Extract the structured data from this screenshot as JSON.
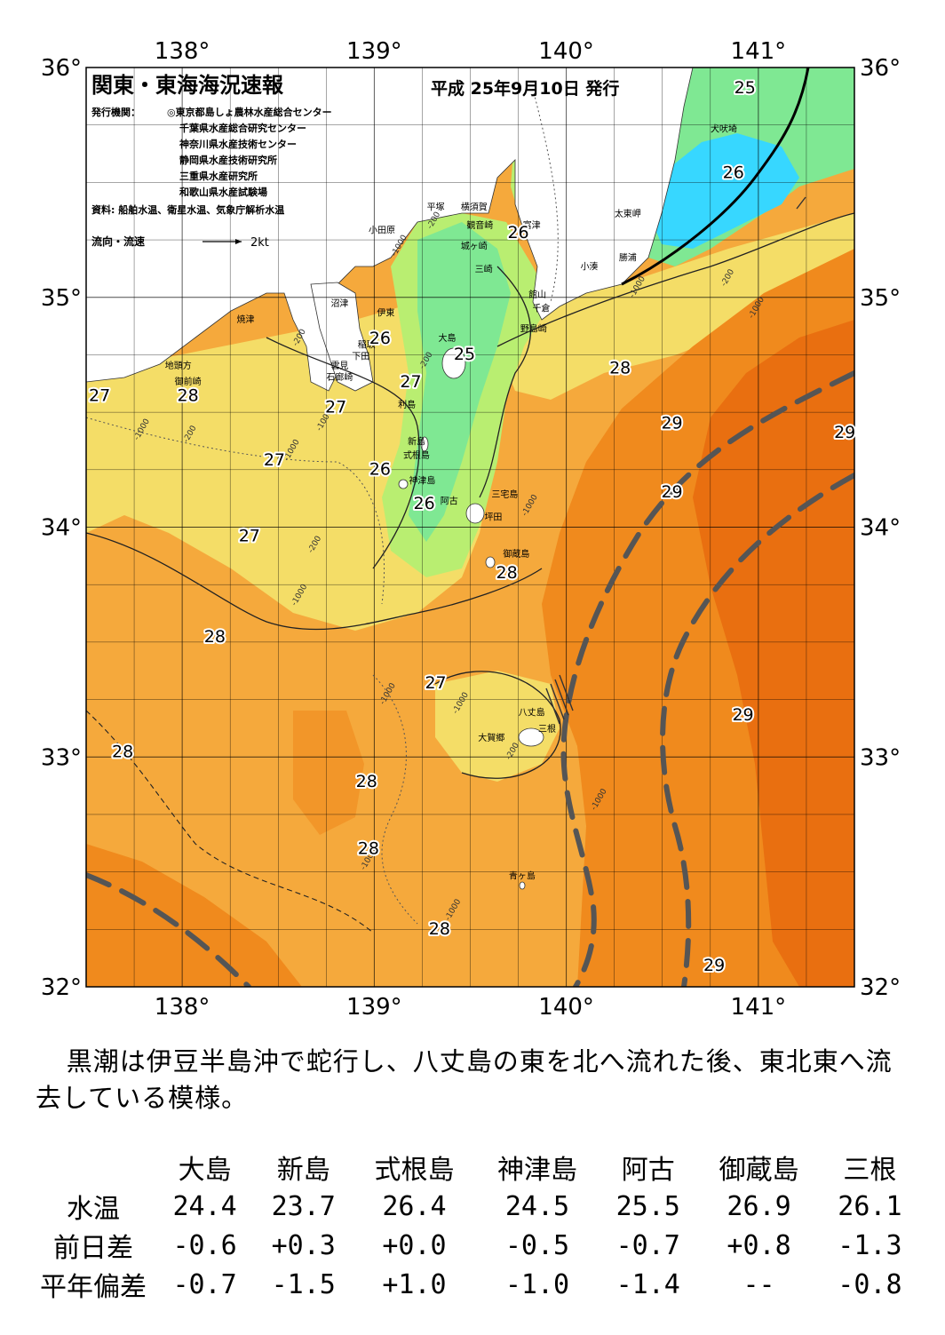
{
  "map": {
    "title": "関東・東海海況速報",
    "date": "平成 25年9月10日 発行",
    "issuer_label": "発行機関：",
    "issuers": [
      "◎東京都島しょ農林水産総合センター",
      "千葉県水産総合研究センター",
      "神奈川県水産技術センター",
      "静岡県水産技術研究所",
      "三重県水産研究所",
      "和歌山県水産試験場"
    ],
    "source": "資料: 船舶水温、衛星水温、気象庁解析水温",
    "flow_label": "流向・流速",
    "flow_scale": "2kt",
    "lon_labels": [
      "138°",
      "139°",
      "140°",
      "141°"
    ],
    "lat_labels": [
      "36°",
      "35°",
      "34°",
      "33°",
      "32°"
    ],
    "places": [
      {
        "name": "犬吠埼",
        "lon": 140.82,
        "lat": 35.72
      },
      {
        "name": "太東岬",
        "lon": 140.32,
        "lat": 35.35
      },
      {
        "name": "勝浦",
        "lon": 140.32,
        "lat": 35.16
      },
      {
        "name": "小湊",
        "lon": 140.12,
        "lat": 35.12
      },
      {
        "name": "富津",
        "lon": 139.82,
        "lat": 35.3
      },
      {
        "name": "館山",
        "lon": 139.85,
        "lat": 35.0
      },
      {
        "name": "千倉",
        "lon": 139.87,
        "lat": 34.94
      },
      {
        "name": "野島崎",
        "lon": 139.83,
        "lat": 34.85
      },
      {
        "name": "横須賀",
        "lon": 139.52,
        "lat": 35.38
      },
      {
        "name": "観音崎",
        "lon": 139.55,
        "lat": 35.3
      },
      {
        "name": "城ヶ崎",
        "lon": 139.52,
        "lat": 35.21
      },
      {
        "name": "三崎",
        "lon": 139.57,
        "lat": 35.11
      },
      {
        "name": "平塚",
        "lon": 139.32,
        "lat": 35.38
      },
      {
        "name": "小田原",
        "lon": 139.04,
        "lat": 35.28
      },
      {
        "name": "沼津",
        "lon": 138.82,
        "lat": 34.96
      },
      {
        "name": "伊東",
        "lon": 139.06,
        "lat": 34.92
      },
      {
        "name": "稲取",
        "lon": 138.96,
        "lat": 34.78
      },
      {
        "name": "下田",
        "lon": 138.93,
        "lat": 34.73
      },
      {
        "name": "雲見",
        "lon": 138.82,
        "lat": 34.69
      },
      {
        "name": "石廊崎",
        "lon": 138.82,
        "lat": 34.64
      },
      {
        "name": "焼津",
        "lon": 138.33,
        "lat": 34.89
      },
      {
        "name": "地頭方",
        "lon": 137.98,
        "lat": 34.69
      },
      {
        "name": "御前崎",
        "lon": 138.03,
        "lat": 34.62
      },
      {
        "name": "大島",
        "lon": 139.38,
        "lat": 34.81
      },
      {
        "name": "利島",
        "lon": 139.17,
        "lat": 34.52
      },
      {
        "name": "新島",
        "lon": 139.22,
        "lat": 34.36
      },
      {
        "name": "式根島",
        "lon": 139.22,
        "lat": 34.3
      },
      {
        "name": "神津島",
        "lon": 139.25,
        "lat": 34.19
      },
      {
        "name": "阿古",
        "lon": 139.39,
        "lat": 34.1
      },
      {
        "name": "三宅島",
        "lon": 139.68,
        "lat": 34.13
      },
      {
        "name": "坪田",
        "lon": 139.62,
        "lat": 34.03
      },
      {
        "name": "御蔵島",
        "lon": 139.74,
        "lat": 33.87
      },
      {
        "name": "八丈島",
        "lon": 139.82,
        "lat": 33.18
      },
      {
        "name": "三根",
        "lon": 139.9,
        "lat": 33.11
      },
      {
        "name": "大賀郷",
        "lon": 139.61,
        "lat": 33.07
      },
      {
        "name": "青ヶ島",
        "lon": 139.77,
        "lat": 32.47
      }
    ],
    "temperature_labels": [
      {
        "value": "25",
        "lon": 140.93,
        "lat": 35.91
      },
      {
        "value": "26",
        "lon": 140.87,
        "lat": 35.54
      },
      {
        "value": "26",
        "lon": 139.75,
        "lat": 35.28
      },
      {
        "value": "26",
        "lon": 139.03,
        "lat": 34.82
      },
      {
        "value": "25",
        "lon": 139.47,
        "lat": 34.75
      },
      {
        "value": "27",
        "lon": 139.19,
        "lat": 34.63
      },
      {
        "value": "28",
        "lon": 140.28,
        "lat": 34.69
      },
      {
        "value": "27",
        "lon": 137.57,
        "lat": 34.57
      },
      {
        "value": "28",
        "lon": 138.03,
        "lat": 34.57
      },
      {
        "value": "27",
        "lon": 138.8,
        "lat": 34.52
      },
      {
        "value": "29",
        "lon": 140.55,
        "lat": 34.45
      },
      {
        "value": "29",
        "lon": 141.45,
        "lat": 34.41
      },
      {
        "value": "27",
        "lon": 138.48,
        "lat": 34.29
      },
      {
        "value": "26",
        "lon": 139.03,
        "lat": 34.25
      },
      {
        "value": "29",
        "lon": 140.55,
        "lat": 34.15
      },
      {
        "value": "26",
        "lon": 139.26,
        "lat": 34.1
      },
      {
        "value": "27",
        "lon": 138.35,
        "lat": 33.96
      },
      {
        "value": "28",
        "lon": 139.69,
        "lat": 33.8
      },
      {
        "value": "28",
        "lon": 138.17,
        "lat": 33.52
      },
      {
        "value": "27",
        "lon": 139.32,
        "lat": 33.32
      },
      {
        "value": "29",
        "lon": 140.92,
        "lat": 33.18
      },
      {
        "value": "28",
        "lon": 137.69,
        "lat": 33.02
      },
      {
        "value": "28",
        "lon": 138.96,
        "lat": 32.89
      },
      {
        "value": "28",
        "lon": 138.97,
        "lat": 32.6
      },
      {
        "value": "28",
        "lon": 139.34,
        "lat": 32.25
      },
      {
        "value": "29",
        "lon": 140.77,
        "lat": 32.09
      }
    ],
    "depth_labels": [
      {
        "value": "-200",
        "lon": 139.32,
        "lat": 35.33
      },
      {
        "value": "-1000",
        "lon": 139.14,
        "lat": 35.22
      },
      {
        "value": "-1000",
        "lon": 140.38,
        "lat": 35.04
      },
      {
        "value": "-200",
        "lon": 140.85,
        "lat": 35.08
      },
      {
        "value": "-1000",
        "lon": 141.0,
        "lat": 34.95
      },
      {
        "value": "-200",
        "lon": 138.62,
        "lat": 34.82
      },
      {
        "value": "-200",
        "lon": 139.28,
        "lat": 34.72
      },
      {
        "value": "-1000",
        "lon": 138.75,
        "lat": 34.46
      },
      {
        "value": "-1000",
        "lon": 137.8,
        "lat": 34.42
      },
      {
        "value": "-200",
        "lon": 138.05,
        "lat": 34.4
      },
      {
        "value": "-1000",
        "lon": 138.58,
        "lat": 34.33
      },
      {
        "value": "-1000",
        "lon": 139.82,
        "lat": 34.09
      },
      {
        "value": "-200",
        "lon": 138.7,
        "lat": 33.92
      },
      {
        "value": "-1000",
        "lon": 138.62,
        "lat": 33.7
      },
      {
        "value": "-1000",
        "lon": 139.08,
        "lat": 33.27
      },
      {
        "value": "-1000",
        "lon": 139.46,
        "lat": 33.23
      },
      {
        "value": "-200",
        "lon": 139.73,
        "lat": 33.02
      },
      {
        "value": "-1000",
        "lon": 140.18,
        "lat": 32.81
      },
      {
        "value": "-1000",
        "lon": 138.98,
        "lat": 32.55
      },
      {
        "value": "-1000",
        "lon": 139.42,
        "lat": 32.33
      }
    ],
    "colors": {
      "t24": "#37d7ff",
      "t25": "#7fe893",
      "t26": "#b9ee71",
      "t27": "#f4dd67",
      "t28": "#f5a93c",
      "t29": "#f08a1d",
      "t29b": "#e96f10",
      "land": "#ffffff",
      "kuroshio": "#555555"
    }
  },
  "description": "黒潮は伊豆半島沖で蛇行し、八丈島の東を北へ流れた後、東北東へ流去している模様。",
  "stats": {
    "stations": [
      "大島",
      "新島",
      "式根島",
      "神津島",
      "阿古",
      "御蔵島",
      "三根"
    ],
    "rows": [
      {
        "label": "水温",
        "values": [
          "24.4",
          "23.7",
          "26.4",
          "24.5",
          "25.5",
          "26.9",
          "26.1"
        ]
      },
      {
        "label": "前日差",
        "values": [
          "-0.6",
          "+0.3",
          "+0.0",
          "-0.5",
          "-0.7",
          "+0.8",
          "-1.3"
        ]
      },
      {
        "label": "平年偏差",
        "values": [
          "-0.7",
          "-1.5",
          "+1.0",
          "-1.0",
          "-1.4",
          "--",
          "-0.8"
        ]
      }
    ]
  }
}
